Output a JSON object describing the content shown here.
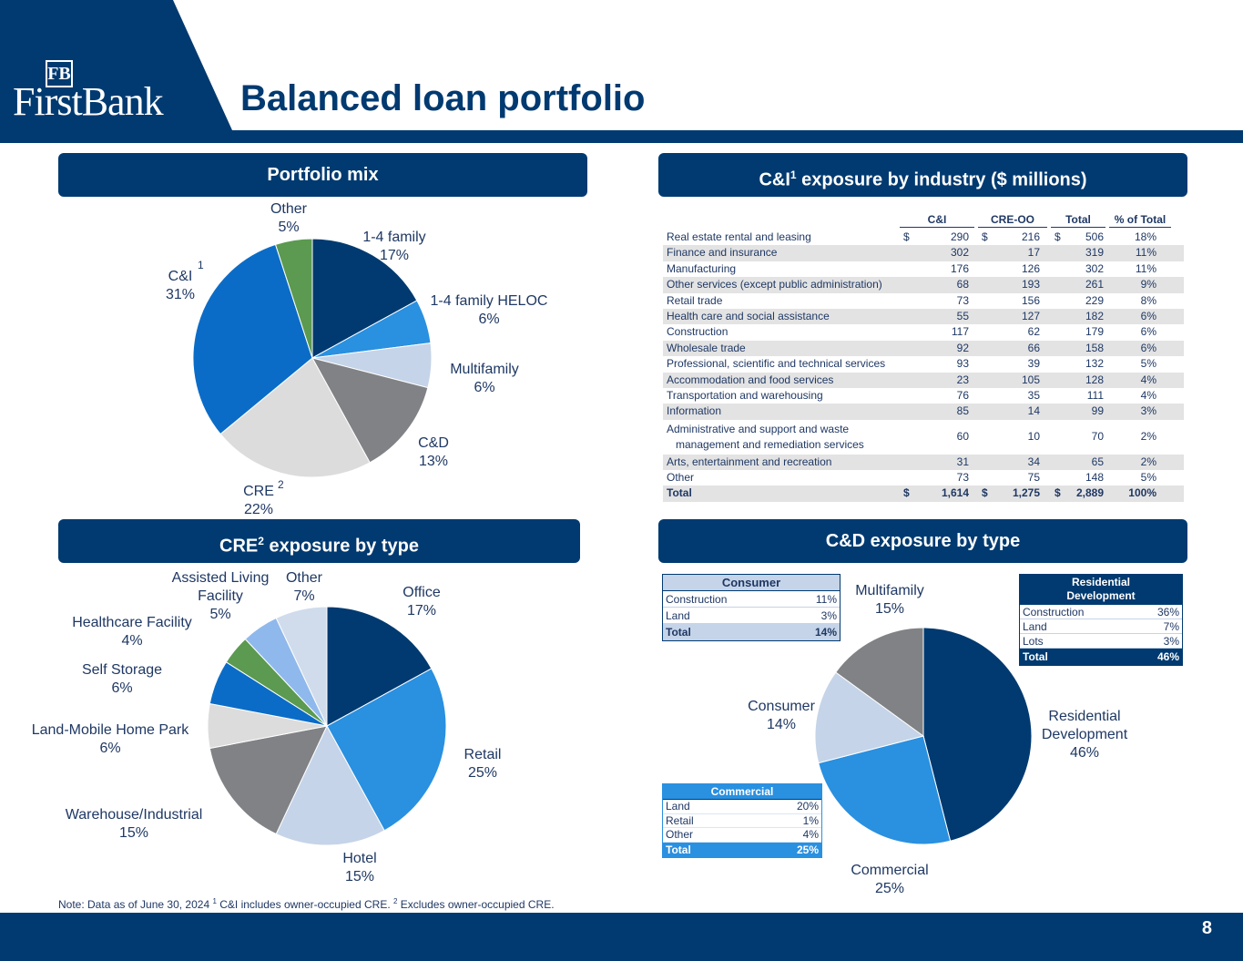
{
  "header": {
    "title": "Balanced loan portfolio",
    "logo_mark": "FB",
    "logo_name": "FirstBank"
  },
  "panels": {
    "portfolio_mix": "Portfolio mix",
    "ci_exposure_pre": "C&I",
    "ci_exposure_sup": "1",
    "ci_exposure_post": " exposure by industry ($ millions)",
    "cre_exposure_pre": "CRE",
    "cre_exposure_sup": "2",
    "cre_exposure_post": " exposure by type",
    "cd_exposure": "C&D exposure by type"
  },
  "colors": {
    "navy": "#003a70",
    "bright_blue": "#2a90e0",
    "light_blue": "#c5d4e8",
    "gray": "#808285",
    "light_gray": "#dcdcdc",
    "green": "#5b9a50",
    "royal_blue": "#0b6cc7"
  },
  "chart_data": [
    {
      "type": "pie",
      "title": "Portfolio mix",
      "slices": [
        {
          "label": "1-4 family",
          "pct_label": "17%",
          "value": 17,
          "color": "#003a70"
        },
        {
          "label": "1-4 family HELOC",
          "pct_label": "6%",
          "value": 6,
          "color": "#2a90e0"
        },
        {
          "label": "Multifamily",
          "pct_label": "6%",
          "value": 6,
          "color": "#c5d4e8"
        },
        {
          "label": "C&D",
          "pct_label": "13%",
          "value": 13,
          "color": "#808285"
        },
        {
          "label": "CRE",
          "sup": "2",
          "pct_label": "22%",
          "value": 22,
          "color": "#dcdcdc"
        },
        {
          "label": "C&I",
          "sup": "1",
          "pct_label": "31%",
          "value": 31,
          "color": "#0b6cc7"
        },
        {
          "label": "Other",
          "pct_label": "5%",
          "value": 5,
          "color": "#5b9a50"
        }
      ]
    },
    {
      "type": "pie",
      "title": "CRE exposure by type",
      "slices": [
        {
          "label": "Office",
          "pct_label": "17%",
          "value": 17,
          "color": "#003a70"
        },
        {
          "label": "Retail",
          "pct_label": "25%",
          "value": 25,
          "color": "#2a90e0"
        },
        {
          "label": "Hotel",
          "pct_label": "15%",
          "value": 15,
          "color": "#c5d4e8"
        },
        {
          "label": "Warehouse/Industrial",
          "pct_label": "15%",
          "value": 15,
          "color": "#808285"
        },
        {
          "label": "Land-Mobile Home Park",
          "pct_label": "6%",
          "value": 6,
          "color": "#dcdcdc"
        },
        {
          "label": "Self Storage",
          "pct_label": "6%",
          "value": 6,
          "color": "#0b6cc7"
        },
        {
          "label": "Healthcare Facility",
          "pct_label": "4%",
          "value": 4,
          "color": "#5b9a50"
        },
        {
          "label": "Assisted Living Facility",
          "label_line1": "Assisted Living",
          "label_line2": "Facility",
          "pct_label": "5%",
          "value": 5,
          "color": "#8fb9ec"
        },
        {
          "label": "Other",
          "pct_label": "7%",
          "value": 7,
          "color": "#d0dcec"
        }
      ]
    },
    {
      "type": "pie",
      "title": "C&D exposure by type",
      "slices": [
        {
          "label": "Residential Development",
          "label_line1": "Residential",
          "label_line2": "Development",
          "pct_label": "46%",
          "value": 46,
          "color": "#003a70"
        },
        {
          "label": "Commercial",
          "pct_label": "25%",
          "value": 25,
          "color": "#2a90e0"
        },
        {
          "label": "Consumer",
          "pct_label": "14%",
          "value": 14,
          "color": "#c5d4e8"
        },
        {
          "label": "Multifamily",
          "pct_label": "15%",
          "value": 15,
          "color": "#808285"
        }
      ]
    },
    {
      "type": "table",
      "title": "C&I exposure by industry ($ millions)",
      "columns": [
        "C&I",
        "CRE-OO",
        "Total",
        "% of Total"
      ],
      "rows": [
        {
          "industry": "Real estate rental and leasing",
          "ci": "290",
          "cre_oo": "216",
          "total": "506",
          "pct": "18%",
          "dollar": true
        },
        {
          "industry": "Finance and insurance",
          "ci": "302",
          "cre_oo": "17",
          "total": "319",
          "pct": "11%"
        },
        {
          "industry": "Manufacturing",
          "ci": "176",
          "cre_oo": "126",
          "total": "302",
          "pct": "11%"
        },
        {
          "industry": "Other services (except public administration)",
          "ci": "68",
          "cre_oo": "193",
          "total": "261",
          "pct": "9%"
        },
        {
          "industry": "Retail trade",
          "ci": "73",
          "cre_oo": "156",
          "total": "229",
          "pct": "8%"
        },
        {
          "industry": "Health care and social assistance",
          "ci": "55",
          "cre_oo": "127",
          "total": "182",
          "pct": "6%"
        },
        {
          "industry": "Construction",
          "ci": "117",
          "cre_oo": "62",
          "total": "179",
          "pct": "6%"
        },
        {
          "industry": "Wholesale trade",
          "ci": "92",
          "cre_oo": "66",
          "total": "158",
          "pct": "6%"
        },
        {
          "industry": "Professional, scientific and technical services",
          "ci": "93",
          "cre_oo": "39",
          "total": "132",
          "pct": "5%"
        },
        {
          "industry": "Accommodation and food services",
          "ci": "23",
          "cre_oo": "105",
          "total": "128",
          "pct": "4%"
        },
        {
          "industry": "Transportation and warehousing",
          "ci": "76",
          "cre_oo": "35",
          "total": "111",
          "pct": "4%"
        },
        {
          "industry": "Information",
          "ci": "85",
          "cre_oo": "14",
          "total": "99",
          "pct": "3%"
        },
        {
          "industry": "Administrative and support and waste",
          "industry_line2": "management and remediation services",
          "ci": "60",
          "cre_oo": "10",
          "total": "70",
          "pct": "2%",
          "tall": true
        },
        {
          "industry": "Arts, entertainment and recreation",
          "ci": "31",
          "cre_oo": "34",
          "total": "65",
          "pct": "2%"
        },
        {
          "industry": "Other",
          "ci": "73",
          "cre_oo": "75",
          "total": "148",
          "pct": "5%"
        },
        {
          "industry": "Total",
          "ci": "1,614",
          "cre_oo": "1,275",
          "total": "2,889",
          "pct": "100%",
          "dollar": true,
          "total_row": true
        }
      ]
    }
  ],
  "cd_tables": {
    "consumer": {
      "title": "Consumer",
      "rows": [
        [
          "Construction",
          "11%"
        ],
        [
          "Land",
          "3%"
        ]
      ],
      "total": [
        "Total",
        "14%"
      ]
    },
    "residential": {
      "title_line1": "Residential",
      "title_line2": "Development",
      "rows": [
        [
          "Construction",
          "36%"
        ],
        [
          "Land",
          "7%"
        ],
        [
          "Lots",
          "3%"
        ]
      ],
      "total": [
        "Total",
        "46%"
      ]
    },
    "commercial": {
      "title": "Commercial",
      "rows": [
        [
          "Land",
          "20%"
        ],
        [
          "Retail",
          "1%"
        ],
        [
          "Other",
          "4%"
        ]
      ],
      "total": [
        "Total",
        "25%"
      ]
    }
  },
  "note": {
    "text1": "Note: Data as of June 30, 2024 ",
    "sup1": "1",
    "text2": " C&I includes owner-occupied CRE. ",
    "sup2": "2",
    "text3": " Excludes owner-occupied CRE."
  },
  "page_number": "8"
}
